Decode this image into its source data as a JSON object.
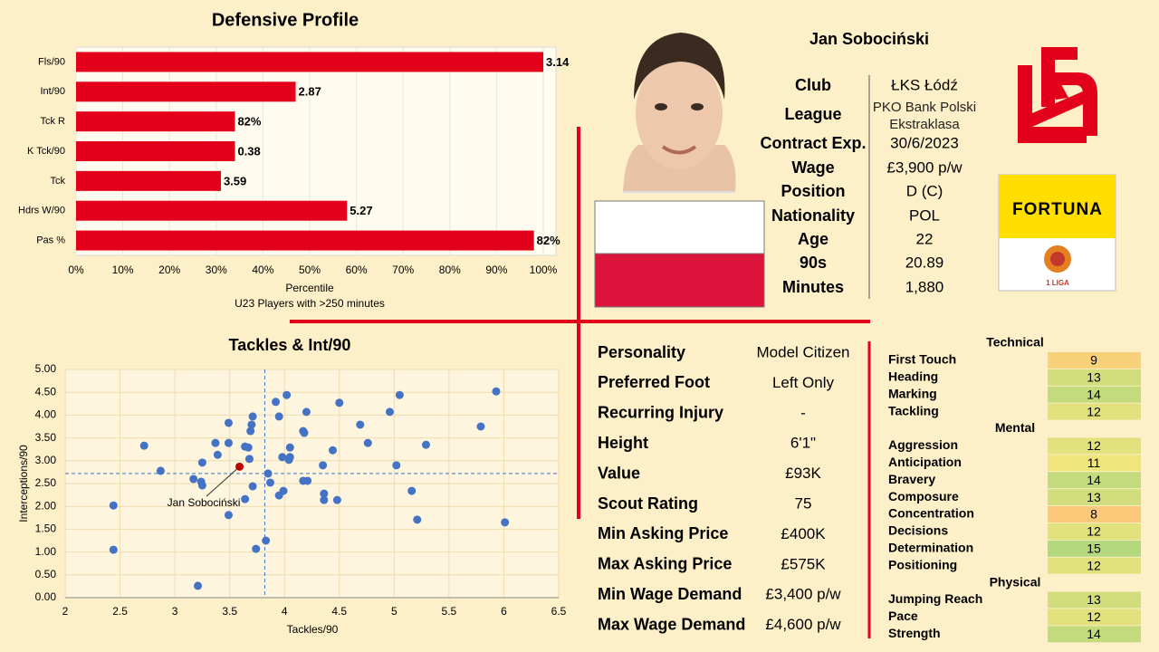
{
  "chart_data": [
    {
      "type": "bar",
      "orientation": "horizontal",
      "title": "Defensive Profile",
      "categories": [
        "Fls/90",
        "Int/90",
        "Tck R",
        "K Tck/90",
        "Tck",
        "Hdrs W/90",
        "Pas %"
      ],
      "values": [
        100,
        47,
        34,
        34,
        31,
        58,
        98
      ],
      "stat_labels": [
        "3.14",
        "2.87",
        "82%",
        "0.38",
        "3.59",
        "5.27",
        "82%"
      ],
      "color": "#e3001b",
      "xlim": [
        0,
        100
      ],
      "xticks": [
        {
          "value": 0,
          "label": "0%"
        },
        {
          "value": 10,
          "label": "10%"
        },
        {
          "value": 20,
          "label": "20%"
        },
        {
          "value": 30,
          "label": "30%"
        },
        {
          "value": 40,
          "label": "40%"
        },
        {
          "value": 50,
          "label": "50%"
        },
        {
          "value": 60,
          "label": "60%"
        },
        {
          "value": 70,
          "label": "70%"
        },
        {
          "value": 80,
          "label": "80%"
        },
        {
          "value": 90,
          "label": "90%"
        },
        {
          "value": 100,
          "label": "100%"
        }
      ],
      "xlabel": "Percentile",
      "subtitle": "U23 Players with >250 minutes",
      "grid": true
    },
    {
      "type": "scatter",
      "title": "Tackles & Int/90",
      "xlabel": "Tackles/90",
      "ylabel": "Interceptions/90",
      "x": [
        2.72,
        2.44,
        2.44,
        2.87,
        3.17,
        3.21,
        3.25,
        3.24,
        3.25,
        3.37,
        3.39,
        3.49,
        3.49,
        3.49,
        3.64,
        3.67,
        3.68,
        3.69,
        3.7,
        3.71,
        3.71,
        3.64,
        3.74,
        3.83,
        3.85,
        3.87,
        3.92,
        3.95,
        3.98,
        4.02,
        4.05,
        4.04,
        4.05,
        3.95,
        3.99,
        4.17,
        4.2,
        4.18,
        4.17,
        4.21,
        4.35,
        4.36,
        4.36,
        4.44,
        4.5,
        4.48,
        4.69,
        4.76,
        4.96,
        5.05,
        5.02,
        5.16,
        5.21,
        5.29,
        5.79,
        5.93,
        6.01
      ],
      "y": [
        3.33,
        2.02,
        1.05,
        2.78,
        2.6,
        0.26,
        2.96,
        2.54,
        2.46,
        3.39,
        3.13,
        3.83,
        3.39,
        1.81,
        3.31,
        3.29,
        3.04,
        3.65,
        3.79,
        3.97,
        2.44,
        2.16,
        1.07,
        1.25,
        2.72,
        2.52,
        4.29,
        3.97,
        3.08,
        4.44,
        3.29,
        3.02,
        3.08,
        2.24,
        2.34,
        3.65,
        4.07,
        3.61,
        2.56,
        2.56,
        2.9,
        2.28,
        2.14,
        3.23,
        4.27,
        2.14,
        3.79,
        3.39,
        4.07,
        4.44,
        2.9,
        2.34,
        1.71,
        3.35,
        3.75,
        4.52,
        1.65
      ],
      "color": "#4472c4",
      "xlim": [
        2,
        6.5
      ],
      "ylim": [
        0,
        5
      ],
      "xticks": [
        2,
        2.5,
        3,
        3.5,
        4,
        4.5,
        5,
        5.5,
        6,
        6.5
      ],
      "yticks": [
        {
          "value": 0,
          "label": "0.00"
        },
        {
          "value": 0.5,
          "label": "0.50"
        },
        {
          "value": 1,
          "label": "1.00"
        },
        {
          "value": 1.5,
          "label": "1.50"
        },
        {
          "value": 2,
          "label": "2.00"
        },
        {
          "value": 2.5,
          "label": "2.50"
        },
        {
          "value": 3,
          "label": "3.00"
        },
        {
          "value": 3.5,
          "label": "3.50"
        },
        {
          "value": 4,
          "label": "4.00"
        },
        {
          "value": 4.5,
          "label": "4.50"
        },
        {
          "value": 5,
          "label": "5.00"
        }
      ],
      "grid": true,
      "reference_lines": {
        "x": 3.82,
        "y": 2.72
      },
      "highlight": {
        "label": "Jan Sobociński",
        "x": 3.59,
        "y": 2.87,
        "color": "#c00000"
      }
    }
  ],
  "player": {
    "name": "Jan Sobociński",
    "fields": [
      {
        "label": "Club",
        "value": "ŁKS Łódź"
      },
      {
        "label": "League",
        "value": "PKO Bank Polski Ekstraklasa"
      },
      {
        "label": "Contract Exp.",
        "value": "30/6/2023"
      },
      {
        "label": "Wage",
        "value": "£3,900 p/w"
      },
      {
        "label": "Position",
        "value": "D (C)"
      },
      {
        "label": "Nationality",
        "value": "POL"
      },
      {
        "label": "Age",
        "value": "22"
      },
      {
        "label": "90s",
        "value": "20.89"
      },
      {
        "label": "Minutes",
        "value": "1,880"
      }
    ]
  },
  "details": [
    {
      "label": "Personality",
      "value": "Model Citizen"
    },
    {
      "label": "Preferred Foot",
      "value": "Left Only"
    },
    {
      "label": "Recurring Injury",
      "value": "-"
    },
    {
      "label": "Height",
      "value": "6'1\""
    },
    {
      "label": "Value",
      "value": "£93K"
    },
    {
      "label": "Scout Rating",
      "value": "75"
    },
    {
      "label": "Min Asking Price",
      "value": "£400K"
    },
    {
      "label": "Max Asking Price",
      "value": "£575K"
    },
    {
      "label": "Min Wage Demand",
      "value": "£3,400 p/w"
    },
    {
      "label": "Max Wage Demand",
      "value": "£4,600 p/w"
    }
  ],
  "attributes": [
    {
      "group": "Technical",
      "items": [
        {
          "name": "First Touch",
          "value": 9
        },
        {
          "name": "Heading",
          "value": 13
        },
        {
          "name": "Marking",
          "value": 14
        },
        {
          "name": "Tackling",
          "value": 12
        }
      ]
    },
    {
      "group": "Mental",
      "items": [
        {
          "name": "Aggression",
          "value": 12
        },
        {
          "name": "Anticipation",
          "value": 11
        },
        {
          "name": "Bravery",
          "value": 14
        },
        {
          "name": "Composure",
          "value": 13
        },
        {
          "name": "Concentration",
          "value": 8
        },
        {
          "name": "Decisions",
          "value": 12
        },
        {
          "name": "Determination",
          "value": 15
        },
        {
          "name": "Positioning",
          "value": 12
        }
      ]
    },
    {
      "group": "Physical",
      "items": [
        {
          "name": "Jumping Reach",
          "value": 13
        },
        {
          "name": "Pace",
          "value": 12
        },
        {
          "name": "Strength",
          "value": 14
        }
      ]
    }
  ],
  "sponsor": {
    "name": "FORTUNA",
    "league": "1 LIGA"
  }
}
